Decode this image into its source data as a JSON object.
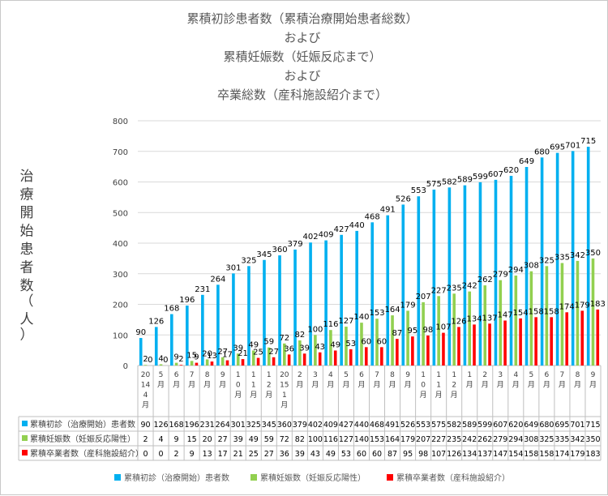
{
  "chart_data": {
    "type": "bar",
    "title_lines": [
      "累積初診患者数（累積治療開始患者総数）",
      "および",
      "累積妊娠数（妊娠反応まで）",
      "および",
      "卒業総数（産科施設紹介まで）"
    ],
    "ylabel": "治療開始患者数（人）",
    "ylim": [
      0,
      800
    ],
    "yticks": [
      0,
      100,
      200,
      300,
      400,
      500,
      600,
      700,
      800
    ],
    "categories": [
      [
        "2014",
        "4月"
      ],
      [
        "5月"
      ],
      [
        "6月"
      ],
      [
        "7月"
      ],
      [
        "8月"
      ],
      [
        "9月"
      ],
      [
        "10月"
      ],
      [
        "11月"
      ],
      [
        "12月"
      ],
      [
        "2015",
        "1月"
      ],
      [
        "2月"
      ],
      [
        "3月"
      ],
      [
        "4月"
      ],
      [
        "5月"
      ],
      [
        "6月"
      ],
      [
        "7月"
      ],
      [
        "8月"
      ],
      [
        "9月"
      ],
      [
        "10月"
      ],
      [
        "11月"
      ],
      [
        "12月"
      ],
      [
        "1月"
      ],
      [
        "2月"
      ],
      [
        "3月"
      ],
      [
        "4月"
      ],
      [
        "5月"
      ],
      [
        "6月"
      ],
      [
        "7月"
      ],
      [
        "8月"
      ],
      [
        "9月"
      ]
    ],
    "series": [
      {
        "name": "累積初診（治療開始）患者数",
        "color": "#00B0F0",
        "values": [
          90,
          126,
          168,
          196,
          231,
          264,
          301,
          325,
          345,
          360,
          379,
          402,
          409,
          427,
          440,
          468,
          491,
          526,
          553,
          575,
          582,
          589,
          599,
          607,
          620,
          649,
          680,
          695,
          701,
          715
        ]
      },
      {
        "name": "累積妊娠数（妊娠反応陽性）",
        "color": "#92D050",
        "values": [
          2,
          4,
          9,
          15,
          20,
          27,
          39,
          49,
          59,
          72,
          82,
          100,
          116,
          127,
          140,
          153,
          164,
          179,
          207,
          227,
          235,
          242,
          262,
          279,
          294,
          308,
          325,
          335,
          342,
          350
        ]
      },
      {
        "name": "累積卒業者数（産科施設紹介）",
        "color": "#FF0000",
        "values": [
          0,
          0,
          2,
          9,
          13,
          17,
          21,
          25,
          27,
          36,
          39,
          43,
          49,
          53,
          60,
          60,
          87,
          95,
          98,
          107,
          126,
          134,
          137,
          147,
          154,
          158,
          158,
          174,
          179,
          183
        ]
      }
    ],
    "grid": true,
    "legend_position": "bottom",
    "data_table": true
  }
}
